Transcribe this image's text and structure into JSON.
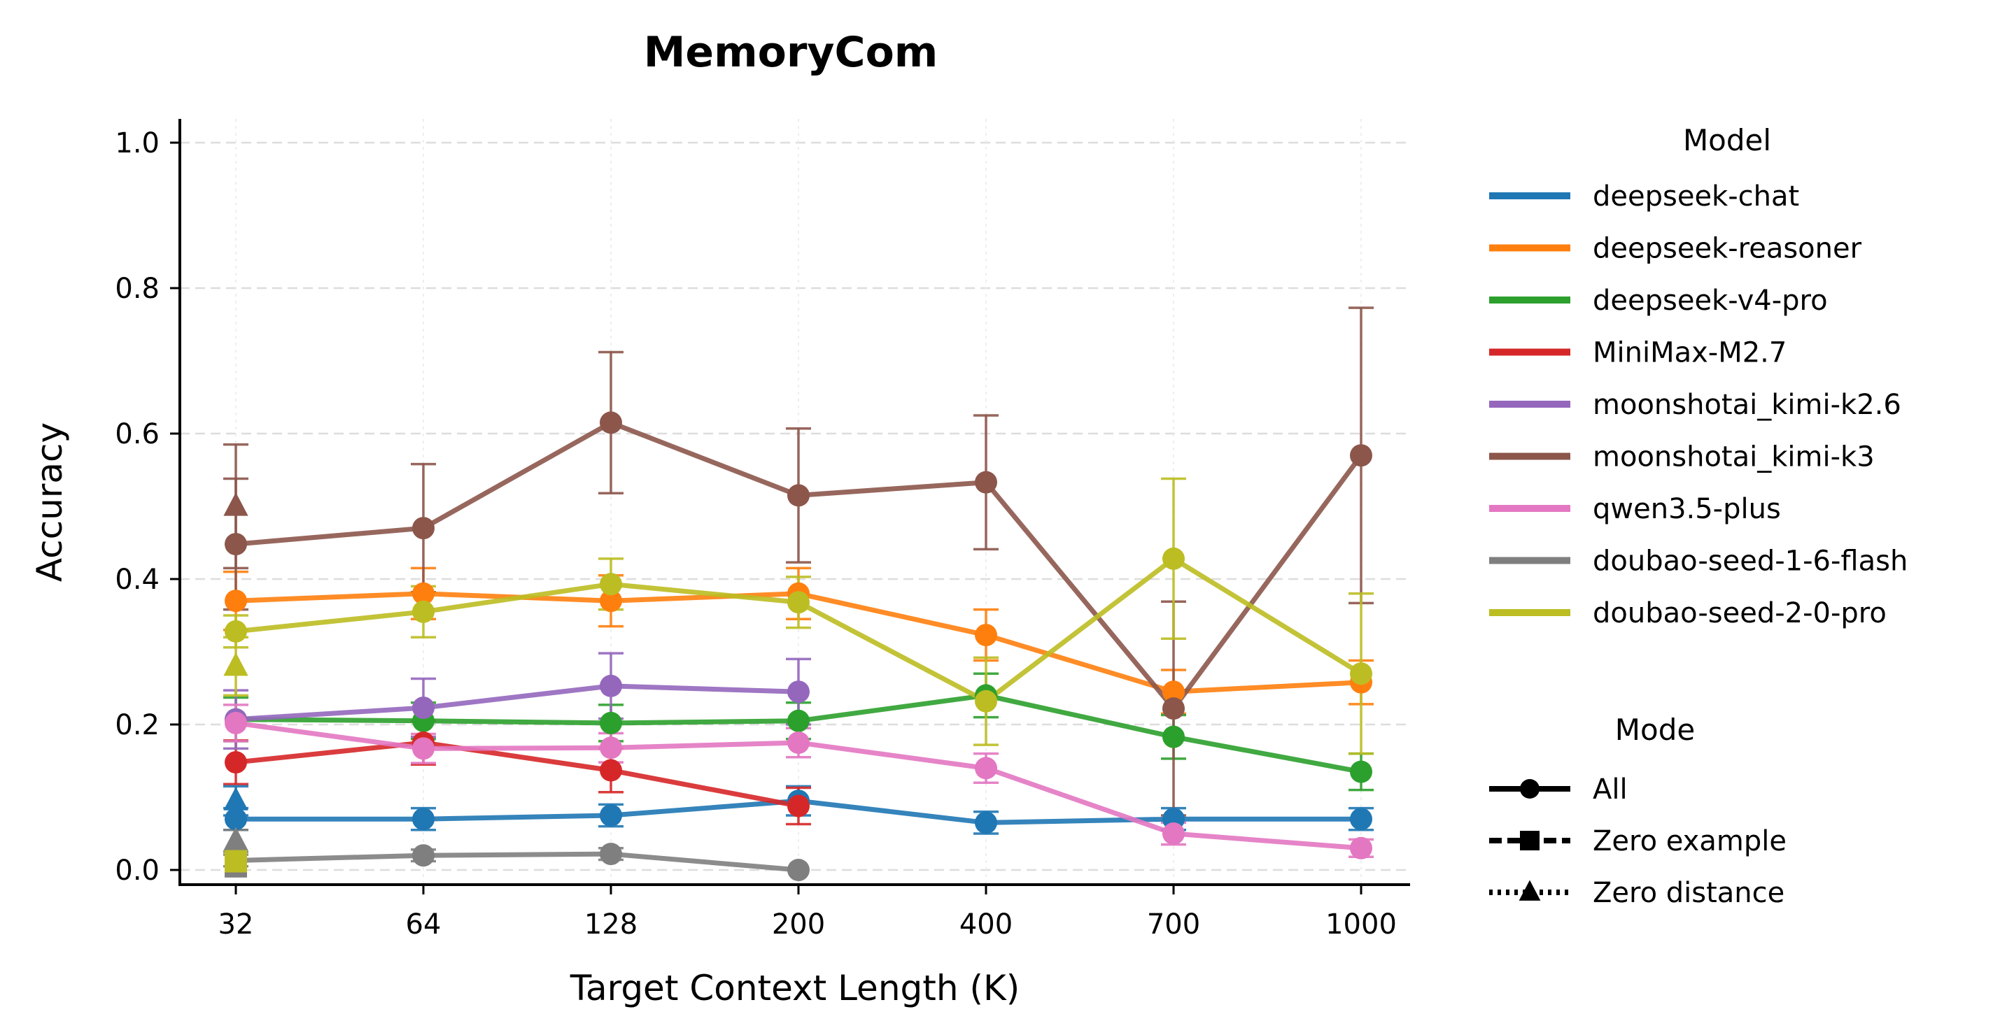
{
  "chart_data": {
    "type": "line",
    "title": "MemoryCom",
    "xlabel": "Target Context Length (K)",
    "ylabel": "Accuracy",
    "categories": [
      "32",
      "64",
      "128",
      "200",
      "400",
      "700",
      "1000"
    ],
    "ylim": [
      -0.03,
      1.03
    ],
    "yticks": [
      0.0,
      0.2,
      0.4,
      0.6,
      0.8,
      1.0
    ],
    "ytick_labels": [
      "0.0",
      "0.2",
      "0.4",
      "0.6",
      "0.8",
      "1.0"
    ],
    "grid": true,
    "legend_placement": "right",
    "legend_model_title": "Model",
    "legend_mode_title": "Mode",
    "modes": [
      {
        "name": "All",
        "marker": "circle",
        "dash": "solid"
      },
      {
        "name": "Zero example",
        "marker": "square",
        "dash": "dashed"
      },
      {
        "name": "Zero distance",
        "marker": "triangle",
        "dash": "dotted"
      }
    ],
    "series": [
      {
        "name": "deepseek-chat",
        "color": "#1f77b4",
        "values": [
          0.07,
          0.07,
          0.075,
          0.095,
          0.065,
          0.07,
          0.07
        ],
        "errors": [
          0.015,
          0.015,
          0.015,
          0.02,
          0.015,
          0.015,
          0.015
        ]
      },
      {
        "name": "deepseek-reasoner",
        "color": "#ff7f0e",
        "values": [
          0.37,
          0.38,
          0.37,
          0.38,
          0.323,
          0.245,
          0.258
        ],
        "errors": [
          0.04,
          0.035,
          0.035,
          0.035,
          0.035,
          0.03,
          0.03
        ]
      },
      {
        "name": "deepseek-v4-pro",
        "color": "#2ca02c",
        "values": [
          0.207,
          0.205,
          0.202,
          0.205,
          0.24,
          0.183,
          0.135
        ],
        "errors": [
          0.03,
          0.025,
          0.025,
          0.025,
          0.03,
          0.03,
          0.025
        ]
      },
      {
        "name": "MiniMax-M2.7",
        "color": "#d62728",
        "values": [
          0.148,
          0.175,
          0.137,
          0.088,
          null,
          null,
          null
        ],
        "errors": [
          0.03,
          0.03,
          0.03,
          0.025,
          null,
          null,
          null
        ]
      },
      {
        "name": "moonshotai_kimi-k2.6",
        "color": "#9467bd",
        "values": [
          0.207,
          0.223,
          0.253,
          0.245,
          null,
          null,
          null
        ],
        "errors": [
          0.04,
          0.04,
          0.045,
          0.045,
          null,
          null,
          null
        ]
      },
      {
        "name": "moonshotai_kimi-k3",
        "color": "#8c564b",
        "values": [
          0.448,
          0.47,
          0.615,
          0.515,
          0.533,
          0.222,
          0.57
        ],
        "errors": [
          0.09,
          0.088,
          0.097,
          0.092,
          0.092,
          0.147,
          0.203
        ]
      },
      {
        "name": "qwen3.5-plus",
        "color": "#e377c2",
        "values": [
          0.202,
          0.167,
          0.168,
          0.175,
          0.14,
          0.05,
          0.03
        ],
        "errors": [
          0.025,
          0.02,
          0.02,
          0.02,
          0.02,
          0.015,
          0.012
        ]
      },
      {
        "name": "doubao-seed-1-6-flash",
        "color": "#7f7f7f",
        "values": [
          0.013,
          0.02,
          0.022,
          0.0,
          null,
          null,
          null
        ],
        "errors": [
          0.008,
          0.008,
          0.008,
          0.0,
          null,
          null,
          null
        ]
      },
      {
        "name": "doubao-seed-2-0-pro",
        "color": "#bcbd22",
        "values": [
          0.328,
          0.355,
          0.393,
          0.368,
          0.232,
          0.428,
          0.27
        ],
        "errors": [
          0.022,
          0.035,
          0.035,
          0.035,
          0.06,
          0.11,
          0.11
        ]
      }
    ],
    "extra_points": [
      {
        "series": "moonshotai_kimi-k3",
        "mode": "Zero distance",
        "x": "32",
        "y": 0.5,
        "error": 0.085
      },
      {
        "series": "doubao-seed-2-0-pro",
        "mode": "Zero distance",
        "x": "32",
        "y": 0.28,
        "error": 0.04
      },
      {
        "series": "deepseek-chat",
        "mode": "Zero distance",
        "x": "32",
        "y": 0.095,
        "error": 0.02
      },
      {
        "series": "doubao-seed-1-6-flash",
        "mode": "Zero distance",
        "x": "32",
        "y": 0.04,
        "error": 0.015
      },
      {
        "series": "doubao-seed-1-6-flash",
        "mode": "Zero example",
        "x": "32",
        "y": 0.005,
        "error": 0.0
      },
      {
        "series": "doubao-seed-2-0-pro",
        "mode": "Zero example",
        "x": "32",
        "y": 0.012,
        "error": 0.0
      }
    ]
  }
}
